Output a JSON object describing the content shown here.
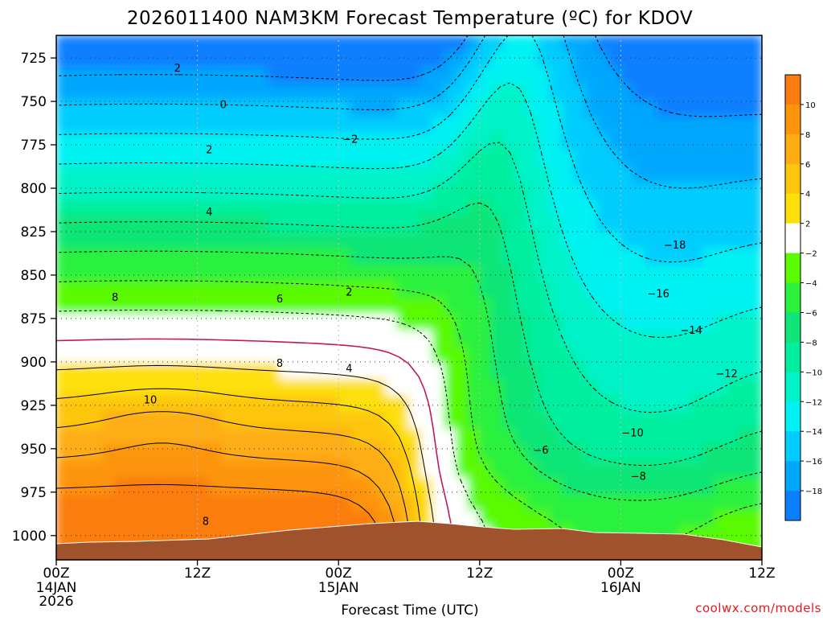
{
  "chart_data": {
    "type": "heatmap",
    "title": "2026011400 NAM3KM Forecast Temperature (ºC) for KDOV",
    "xlabel": "Forecast Time (UTC)",
    "ylabel": "",
    "y_axis": {
      "name": "pressure",
      "ticks": [
        725,
        750,
        775,
        800,
        825,
        850,
        875,
        900,
        925,
        950,
        975,
        1000
      ],
      "range": [
        712,
        1014
      ],
      "inverted": false
    },
    "x_axis": {
      "range_hours": [
        0,
        60
      ],
      "ticks": [
        {
          "hour": 0,
          "label": "00Z",
          "sub1": "14JAN",
          "sub2": "2026"
        },
        {
          "hour": 12,
          "label": "12Z",
          "sub1": "",
          "sub2": ""
        },
        {
          "hour": 24,
          "label": "00Z",
          "sub1": "15JAN",
          "sub2": ""
        },
        {
          "hour": 36,
          "label": "12Z",
          "sub1": "",
          "sub2": ""
        },
        {
          "hour": 48,
          "label": "00Z",
          "sub1": "16JAN",
          "sub2": ""
        },
        {
          "hour": 60,
          "label": "12Z",
          "sub1": "",
          "sub2": ""
        }
      ]
    },
    "grid": true,
    "colorbar": {
      "placement": "right",
      "ticks": [
        10,
        8,
        6,
        4,
        2,
        -2,
        -4,
        -6,
        -8,
        -10,
        -12,
        -14,
        -16,
        -18
      ],
      "levels": [
        {
          "from": 10,
          "to": 12,
          "color": "#fb7d0f"
        },
        {
          "from": 8,
          "to": 10,
          "color": "#fd940a"
        },
        {
          "from": 6,
          "to": 8,
          "color": "#fdad12"
        },
        {
          "from": 4,
          "to": 6,
          "color": "#fdc60e"
        },
        {
          "from": 2,
          "to": 4,
          "color": "#fde00a"
        },
        {
          "from": -2,
          "to": 2,
          "color": "#ffffff"
        },
        {
          "from": -4,
          "to": -2,
          "color": "#5afa00"
        },
        {
          "from": -6,
          "to": -4,
          "color": "#2cf13c"
        },
        {
          "from": -8,
          "to": -6,
          "color": "#10e577"
        },
        {
          "from": -10,
          "to": -8,
          "color": "#00ef9f"
        },
        {
          "from": -12,
          "to": -10,
          "color": "#00f3c8"
        },
        {
          "from": -14,
          "to": -12,
          "color": "#00f2f3"
        },
        {
          "from": -16,
          "to": -14,
          "color": "#00cdfd"
        },
        {
          "from": -18,
          "to": -16,
          "color": "#00a8fd"
        },
        {
          "from": -20,
          "to": -18,
          "color": "#0c7fff"
        }
      ]
    },
    "ground_color": "#a0522d",
    "zero_line_color": "#c2185b",
    "contour_labels": [
      {
        "text": "2",
        "t": 10.3,
        "p": 731
      },
      {
        "text": "0",
        "t": 14.2,
        "p": 752
      },
      {
        "text": "2",
        "t": 13.0,
        "p": 778
      },
      {
        "text": "4",
        "t": 13.0,
        "p": 814
      },
      {
        "text": "8",
        "t": 5.0,
        "p": 863
      },
      {
        "text": "6",
        "t": 19.0,
        "p": 864
      },
      {
        "text": "2",
        "t": 24.9,
        "p": 860
      },
      {
        "text": "4",
        "t": 24.9,
        "p": 904
      },
      {
        "text": "8",
        "t": 19.0,
        "p": 901
      },
      {
        "text": "10",
        "t": 8.0,
        "p": 922
      },
      {
        "text": "8",
        "t": 12.7,
        "p": 992
      },
      {
        "text": "−2",
        "t": 25.0,
        "p": 772
      },
      {
        "text": "−18",
        "t": 52.6,
        "p": 833
      },
      {
        "text": "−16",
        "t": 51.2,
        "p": 861
      },
      {
        "text": "−14",
        "t": 54.0,
        "p": 882
      },
      {
        "text": "−12",
        "t": 57.0,
        "p": 907
      },
      {
        "text": "−10",
        "t": 49.0,
        "p": 941
      },
      {
        "text": "−8",
        "t": 49.5,
        "p": 966
      },
      {
        "text": "−6",
        "t": 41.2,
        "p": 951
      }
    ],
    "credit": "coolwx.com/models"
  }
}
